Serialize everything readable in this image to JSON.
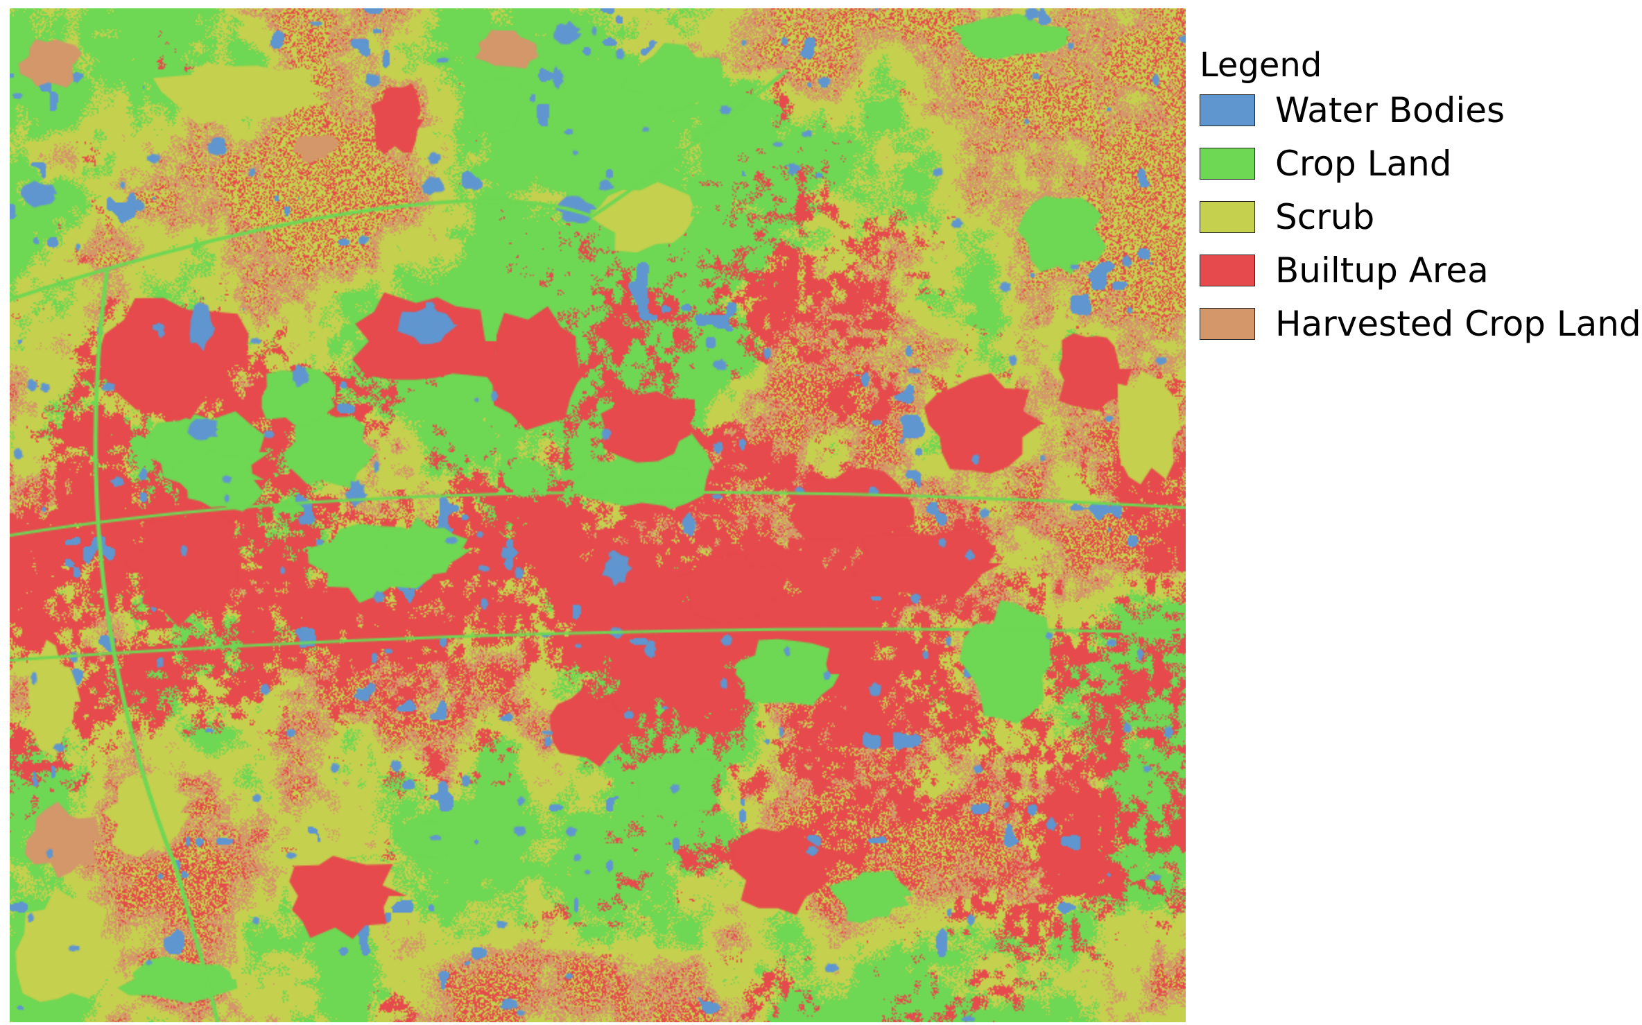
{
  "legend": {
    "title": "Legend",
    "items": [
      {
        "label": "Water Bodies",
        "color": "#6096cf"
      },
      {
        "label": "Crop Land",
        "color": "#6ed754"
      },
      {
        "label": "Scrub",
        "color": "#c5d04e"
      },
      {
        "label": "Builtup Area",
        "color": "#e64a4c"
      },
      {
        "label": "Harvested Crop Land",
        "color": "#d4976a"
      }
    ]
  }
}
